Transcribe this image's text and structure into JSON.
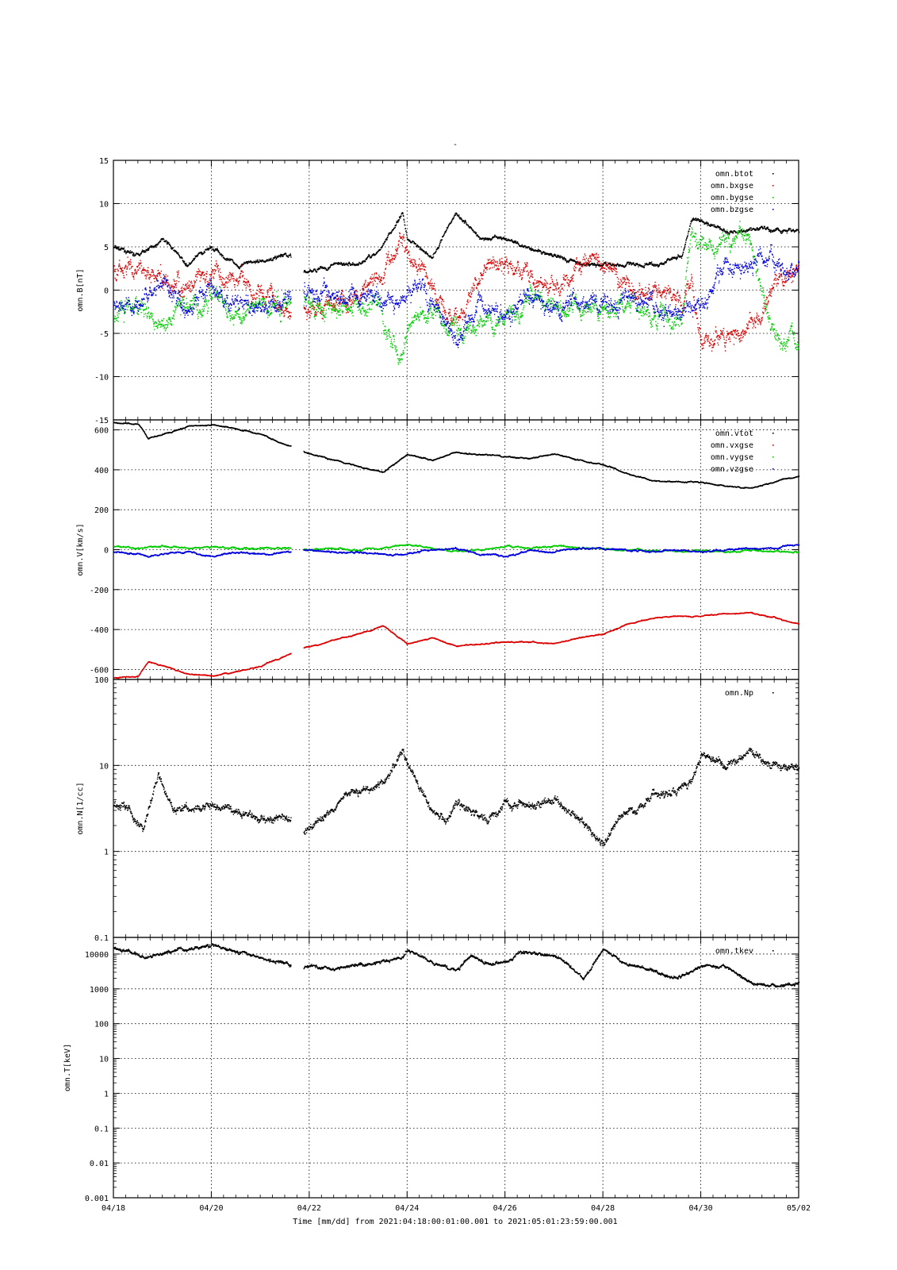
{
  "figure": {
    "top_title": "-",
    "xlabel": "Time [mm/dd]  from 2021:04:18:00:01:00.001  to  2021:05:01:23:59:00.001",
    "xticks": [
      "04/18",
      "04/20",
      "04/22",
      "04/24",
      "04/26",
      "04/28",
      "04/30",
      "05/02"
    ],
    "xrange_days": [
      0,
      14
    ]
  },
  "chart_data": [
    {
      "type": "scatter",
      "ylabel": "omn.B[nT]",
      "ylim": [
        -15,
        15
      ],
      "yticks": [
        "15",
        "10",
        "5",
        "0",
        "-5",
        "-10",
        "-15"
      ],
      "ytick_values": [
        15,
        10,
        5,
        0,
        -5,
        -10,
        -15
      ],
      "scale": "linear",
      "grid": true,
      "legend_position": "top-right",
      "gap_days": [
        3.62,
        3.88
      ],
      "series": [
        {
          "name": "omn.btot",
          "color": "#000000",
          "x_dates": [
            "04/18",
            "04/18.5",
            "04/19",
            "04/19.5",
            "04/20",
            "04/20.5",
            "04/21",
            "04/21.6",
            "04/21.9",
            "04/22.5",
            "04/23",
            "04/23.5",
            "04/23.9",
            "04/24",
            "04/24.5",
            "04/25",
            "04/25.5",
            "04/26",
            "04/26.5",
            "04/27",
            "04/27.5",
            "04/28",
            "04/28.5",
            "04/29",
            "04/29.6",
            "04/29.8",
            "04/30",
            "04/30.5",
            "05/01",
            "05/01.5",
            "05/02"
          ],
          "values": [
            5,
            4,
            6,
            3,
            5,
            3,
            3.5,
            4,
            2,
            3,
            3,
            5,
            9,
            6,
            4,
            9,
            6,
            6,
            5,
            4,
            3,
            3,
            3,
            3,
            4,
            8,
            8,
            7,
            7,
            7,
            7
          ]
        },
        {
          "name": "omn.bxgse",
          "color": "#dd0000",
          "x_dates": [
            "04/18",
            "04/18.5",
            "04/19",
            "04/19.5",
            "04/20",
            "04/20.5",
            "04/21",
            "04/21.6",
            "04/21.9",
            "04/22.5",
            "04/23",
            "04/23.5",
            "04/23.9",
            "04/24",
            "04/24.5",
            "04/25",
            "04/25.5",
            "04/26",
            "04/26.5",
            "04/27",
            "04/27.5",
            "04/28",
            "04/28.5",
            "04/29",
            "04/29.6",
            "04/29.8",
            "04/30",
            "04/30.5",
            "05/01",
            "05/01.5",
            "05/02"
          ],
          "values": [
            3,
            2,
            1,
            0,
            2,
            1,
            0,
            -3,
            -2,
            -1,
            -1,
            2,
            6,
            4,
            1,
            -3,
            2,
            3,
            2,
            0,
            3,
            3,
            1,
            0,
            -1,
            1,
            -5,
            -5,
            -4,
            1,
            2
          ]
        },
        {
          "name": "omn.bygse",
          "color": "#00cc00",
          "x_dates": [
            "04/18",
            "04/18.5",
            "04/19",
            "04/19.5",
            "04/20",
            "04/20.5",
            "04/21",
            "04/21.6",
            "04/21.9",
            "04/22.5",
            "04/23",
            "04/23.5",
            "04/23.9",
            "04/24",
            "04/24.5",
            "04/25",
            "04/25.5",
            "04/26",
            "04/26.5",
            "04/27",
            "04/27.5",
            "04/28",
            "04/28.5",
            "04/29",
            "04/29.6",
            "04/29.8",
            "04/30",
            "04/30.5",
            "05/01",
            "05/01.5",
            "05/02"
          ],
          "values": [
            -3,
            -1,
            -4,
            -2,
            -1,
            -3,
            -2,
            -1,
            -1,
            -2,
            -1,
            -3,
            -8,
            -4,
            -2,
            -5,
            -4,
            -3,
            -1,
            -2,
            -2,
            -2,
            -2,
            -3,
            -3,
            7,
            5,
            6,
            5,
            -5,
            -6
          ]
        },
        {
          "name": "omn.bzgse",
          "color": "#0000dd",
          "x_dates": [
            "04/18",
            "04/18.5",
            "04/19",
            "04/19.5",
            "04/20",
            "04/20.5",
            "04/21",
            "04/21.6",
            "04/21.9",
            "04/22.5",
            "04/23",
            "04/23.5",
            "04/23.9",
            "04/24",
            "04/24.5",
            "04/25",
            "04/25.5",
            "04/26",
            "04/26.5",
            "04/27",
            "04/27.5",
            "04/28",
            "04/28.5",
            "04/29",
            "04/29.6",
            "04/29.8",
            "04/30",
            "04/30.5",
            "05/01",
            "05/01.5",
            "05/02"
          ],
          "values": [
            -1,
            -2,
            1,
            -2,
            0,
            -1,
            -2,
            -1,
            0,
            -1,
            0,
            -2,
            -1,
            0,
            -1,
            -6,
            -1,
            -3,
            0,
            -2,
            -1,
            -1,
            -1,
            -2,
            -2,
            -1,
            -2,
            3,
            2,
            4,
            3
          ]
        }
      ]
    },
    {
      "type": "scatter",
      "ylabel": "omn.V[km/s]",
      "ylim": [
        -650,
        650
      ],
      "yticks": [
        "600",
        "400",
        "200",
        "0",
        "-200",
        "-400",
        "-600"
      ],
      "ytick_values": [
        600,
        400,
        200,
        0,
        -200,
        -400,
        -600
      ],
      "scale": "linear",
      "grid": true,
      "legend_position": "top-right",
      "gap_days": [
        3.62,
        3.88
      ],
      "series": [
        {
          "name": "omn.vtot",
          "color": "#000000",
          "x_dates": [
            "04/18",
            "04/18.5",
            "04/18.7",
            "04/19",
            "04/19.5",
            "04/20",
            "04/20.5",
            "04/21",
            "04/21.6",
            "04/21.9",
            "04/22.5",
            "04/23",
            "04/23.5",
            "04/24",
            "04/24.5",
            "04/25",
            "04/25.5",
            "04/26",
            "04/26.5",
            "04/27",
            "04/27.5",
            "04/28",
            "04/28.5",
            "04/29",
            "04/29.6",
            "04/30",
            "04/30.5",
            "05/01",
            "05/01.5",
            "05/02"
          ],
          "values": [
            640,
            630,
            560,
            580,
            620,
            630,
            610,
            580,
            520,
            490,
            450,
            420,
            390,
            480,
            450,
            490,
            480,
            470,
            460,
            480,
            450,
            430,
            380,
            350,
            340,
            340,
            320,
            310,
            340,
            370
          ]
        },
        {
          "name": "omn.vxgse",
          "color": "#dd0000",
          "x_dates": [
            "04/18",
            "04/18.5",
            "04/18.7",
            "04/19",
            "04/19.5",
            "04/20",
            "04/20.5",
            "04/21",
            "04/21.6",
            "04/21.9",
            "04/22.5",
            "04/23",
            "04/23.5",
            "04/24",
            "04/24.5",
            "04/25",
            "04/25.5",
            "04/26",
            "04/26.5",
            "04/27",
            "04/27.5",
            "04/28",
            "04/28.5",
            "04/29",
            "04/29.6",
            "04/30",
            "04/30.5",
            "05/01",
            "05/01.5",
            "05/02"
          ],
          "values": [
            -640,
            -630,
            -560,
            -580,
            -620,
            -630,
            -610,
            -580,
            -520,
            -490,
            -450,
            -420,
            -380,
            -470,
            -440,
            -480,
            -470,
            -460,
            -460,
            -470,
            -440,
            -420,
            -370,
            -340,
            -330,
            -330,
            -320,
            -310,
            -340,
            -370
          ]
        },
        {
          "name": "omn.vygse",
          "color": "#00cc00",
          "x_dates": [
            "04/18",
            "04/18.5",
            "04/18.7",
            "04/19",
            "04/19.5",
            "04/20",
            "04/20.5",
            "04/21",
            "04/21.6",
            "04/21.9",
            "04/22.5",
            "04/23",
            "04/23.5",
            "04/24",
            "04/24.5",
            "04/25",
            "04/25.5",
            "04/26",
            "04/26.5",
            "04/27",
            "04/27.5",
            "04/28",
            "04/28.5",
            "04/29",
            "04/29.6",
            "04/30",
            "04/30.5",
            "05/01",
            "05/01.5",
            "05/02"
          ],
          "values": [
            20,
            10,
            15,
            20,
            10,
            15,
            10,
            10,
            10,
            5,
            5,
            0,
            10,
            30,
            10,
            -10,
            0,
            20,
            10,
            20,
            10,
            10,
            0,
            0,
            -5,
            0,
            -10,
            0,
            -5,
            -10
          ]
        },
        {
          "name": "omn.vzgse",
          "color": "#0000dd",
          "x_dates": [
            "04/18",
            "04/18.5",
            "04/18.7",
            "04/19",
            "04/19.5",
            "04/20",
            "04/20.5",
            "04/21",
            "04/21.6",
            "04/21.9",
            "04/22.5",
            "04/23",
            "04/23.5",
            "04/24",
            "04/24.5",
            "04/25",
            "04/25.5",
            "04/26",
            "04/26.5",
            "04/27",
            "04/27.5",
            "04/28",
            "04/28.5",
            "04/29",
            "04/29.6",
            "04/30",
            "04/30.5",
            "05/01",
            "05/01.5",
            "05/02"
          ],
          "values": [
            -10,
            -20,
            -30,
            -20,
            -10,
            -30,
            -10,
            -20,
            -10,
            0,
            -10,
            -10,
            -20,
            -20,
            0,
            10,
            -20,
            -30,
            0,
            -10,
            10,
            10,
            0,
            -10,
            0,
            -10,
            0,
            10,
            10,
            30
          ]
        }
      ]
    },
    {
      "type": "scatter",
      "ylabel": "omn.N[1/cc]",
      "ylim": [
        0.1,
        100
      ],
      "yticks": [
        "100",
        "10",
        "1",
        "0.1"
      ],
      "ytick_values": [
        100,
        10,
        1,
        0.1
      ],
      "scale": "log",
      "grid": true,
      "legend_position": "top-right",
      "gap_days": [
        3.62,
        3.88
      ],
      "series": [
        {
          "name": "omn.Np",
          "color": "#000000",
          "x_dates": [
            "04/18",
            "04/18.3",
            "04/18.6",
            "04/18.9",
            "04/19.2",
            "04/19.5",
            "04/20",
            "04/20.5",
            "04/21",
            "04/21.6",
            "04/21.9",
            "04/22.3",
            "04/22.7",
            "04/23",
            "04/23.5",
            "04/23.9",
            "04/24.1",
            "04/24.5",
            "04/24.8",
            "04/25",
            "04/25.3",
            "04/25.6",
            "04/26",
            "04/26.5",
            "04/27",
            "04/27.3",
            "04/27.7",
            "04/28",
            "04/28.3",
            "04/28.7",
            "04/29",
            "04/29.5",
            "04/29.8",
            "04/30",
            "04/30.5",
            "05/01",
            "05/01.5",
            "05/02"
          ],
          "values": [
            3.5,
            3,
            1.8,
            8,
            3,
            3.2,
            3.5,
            2.8,
            2.5,
            2.5,
            1.7,
            2.5,
            4.5,
            5,
            6,
            15,
            8,
            3,
            2.2,
            4,
            3,
            2.5,
            3.5,
            3.5,
            4,
            3,
            2,
            1.1,
            2.5,
            3,
            4.5,
            5,
            7,
            13,
            10,
            15,
            10,
            9
          ]
        }
      ]
    },
    {
      "type": "scatter",
      "ylabel": "omn.T[keV]",
      "ylim": [
        0.001,
        30000
      ],
      "yticks": [
        "10000",
        "1000",
        "100",
        "10",
        "1",
        "0.1",
        "0.01",
        "0.001"
      ],
      "ytick_values": [
        10000,
        1000,
        100,
        10,
        1,
        0.1,
        0.01,
        0.001
      ],
      "scale": "log",
      "grid": true,
      "legend_position": "top-right",
      "gap_days": [
        3.62,
        3.88
      ],
      "series": [
        {
          "name": "omn.tkev",
          "color": "#000000",
          "x_dates": [
            "04/18",
            "04/18.3",
            "04/18.6",
            "04/19",
            "04/19.5",
            "04/20",
            "04/20.5",
            "04/21",
            "04/21.6",
            "04/21.9",
            "04/22.5",
            "04/23",
            "04/23.5",
            "04/23.9",
            "04/24",
            "04/24.5",
            "04/25",
            "04/25.3",
            "04/25.7",
            "04/26",
            "04/26.3",
            "04/26.7",
            "04/27",
            "04/27.3",
            "04/27.6",
            "04/28",
            "04/28.5",
            "04/29",
            "04/29.5",
            "04/30",
            "04/30.5",
            "05/01",
            "05/01.5",
            "05/02"
          ],
          "values": [
            15000,
            12000,
            8000,
            12000,
            14000,
            18000,
            12000,
            8000,
            5000,
            4500,
            4000,
            5000,
            6000,
            8000,
            14000,
            6000,
            3500,
            9000,
            5000,
            6000,
            12000,
            10000,
            9000,
            5000,
            2000,
            14000,
            5000,
            3500,
            2000,
            4500,
            4500,
            1500,
            1200,
            1500
          ]
        }
      ]
    }
  ]
}
